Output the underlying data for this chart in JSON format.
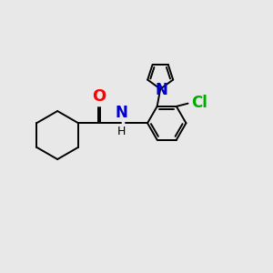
{
  "background_color": "#e8e8e8",
  "bond_color": "#000000",
  "atom_colors": {
    "O": "#ff0000",
    "N_amide": "#0000cc",
    "N_pyrrole": "#0000cc",
    "Cl": "#00aa00",
    "H": "#000000"
  },
  "lw": 1.4,
  "fs": 12,
  "xlim": [
    0,
    10
  ],
  "ylim": [
    0,
    10
  ]
}
